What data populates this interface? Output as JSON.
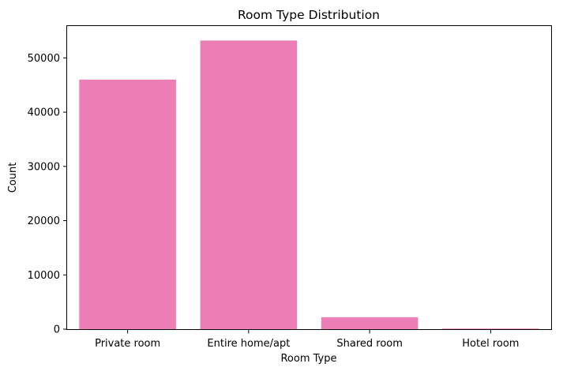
{
  "chart_data": {
    "type": "bar",
    "title": "Room Type Distribution",
    "xlabel": "Room Type",
    "ylabel": "Count",
    "categories": [
      "Private room",
      "Entire home/apt",
      "Shared room",
      "Hotel room"
    ],
    "values": [
      46000,
      53200,
      2200,
      120
    ],
    "ylim": [
      0,
      55870
    ],
    "yticks": [
      0,
      10000,
      20000,
      30000,
      40000,
      50000
    ],
    "ytick_labels": [
      "0",
      "10000",
      "20000",
      "30000",
      "40000",
      "50000"
    ],
    "bar_color": "#ec7fb5",
    "grid": false,
    "legend": "none"
  }
}
